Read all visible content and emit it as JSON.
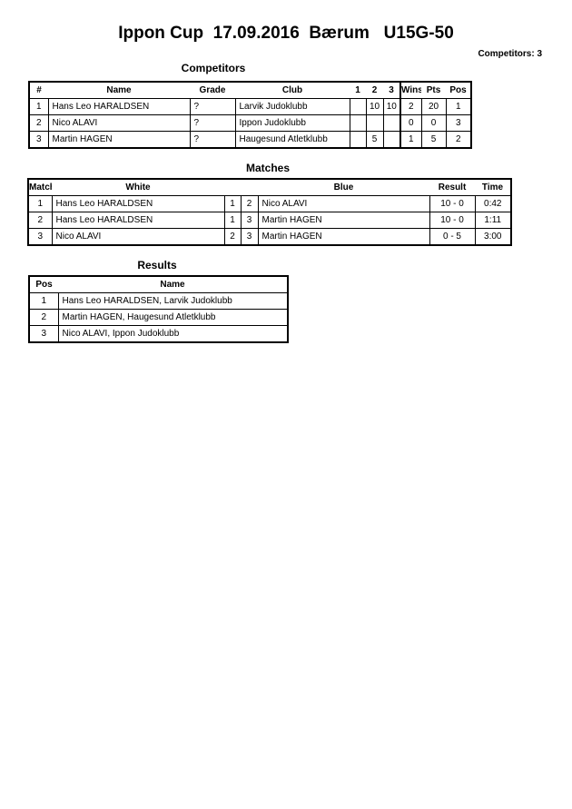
{
  "title": "Ippon Cup  17.09.2016  Bærum   U15G-50",
  "competitors_count": "Competitors: 3",
  "competitors": {
    "heading": "Competitors",
    "columns": [
      "#",
      "Name",
      "Grade",
      "Club",
      "1",
      "2",
      "3",
      "Wins",
      "Pts",
      "Pos"
    ],
    "rows": [
      [
        "1",
        "Hans Leo HARALDSEN",
        "?",
        "Larvik Judoklubb",
        "",
        "10",
        "10",
        "2",
        "20",
        "1"
      ],
      [
        "2",
        "Nico ALAVI",
        "?",
        "Ippon Judoklubb",
        "",
        "",
        "",
        "0",
        "0",
        "3"
      ],
      [
        "3",
        "Martin HAGEN",
        "?",
        "Haugesund Atletklubb",
        "",
        "5",
        "",
        "1",
        "5",
        "2"
      ]
    ]
  },
  "matches": {
    "heading": "Matches",
    "columns": [
      "Match",
      "White",
      "",
      "",
      "Blue",
      "Result",
      "Time"
    ],
    "rows": [
      [
        "1",
        "Hans Leo HARALDSEN",
        "1",
        "2",
        "Nico ALAVI",
        "10 - 0",
        "0:42"
      ],
      [
        "2",
        "Hans Leo HARALDSEN",
        "1",
        "3",
        "Martin HAGEN",
        "10 - 0",
        "1:11"
      ],
      [
        "3",
        "Nico ALAVI",
        "2",
        "3",
        "Martin HAGEN",
        "0 - 5",
        "3:00"
      ]
    ]
  },
  "results": {
    "heading": "Results",
    "columns": [
      "Pos",
      "Name"
    ],
    "rows": [
      [
        "1",
        "Hans Leo HARALDSEN, Larvik Judoklubb"
      ],
      [
        "2",
        "Martin HAGEN, Haugesund Atletklubb"
      ],
      [
        "3",
        "Nico ALAVI, Ippon Judoklubb"
      ]
    ]
  }
}
